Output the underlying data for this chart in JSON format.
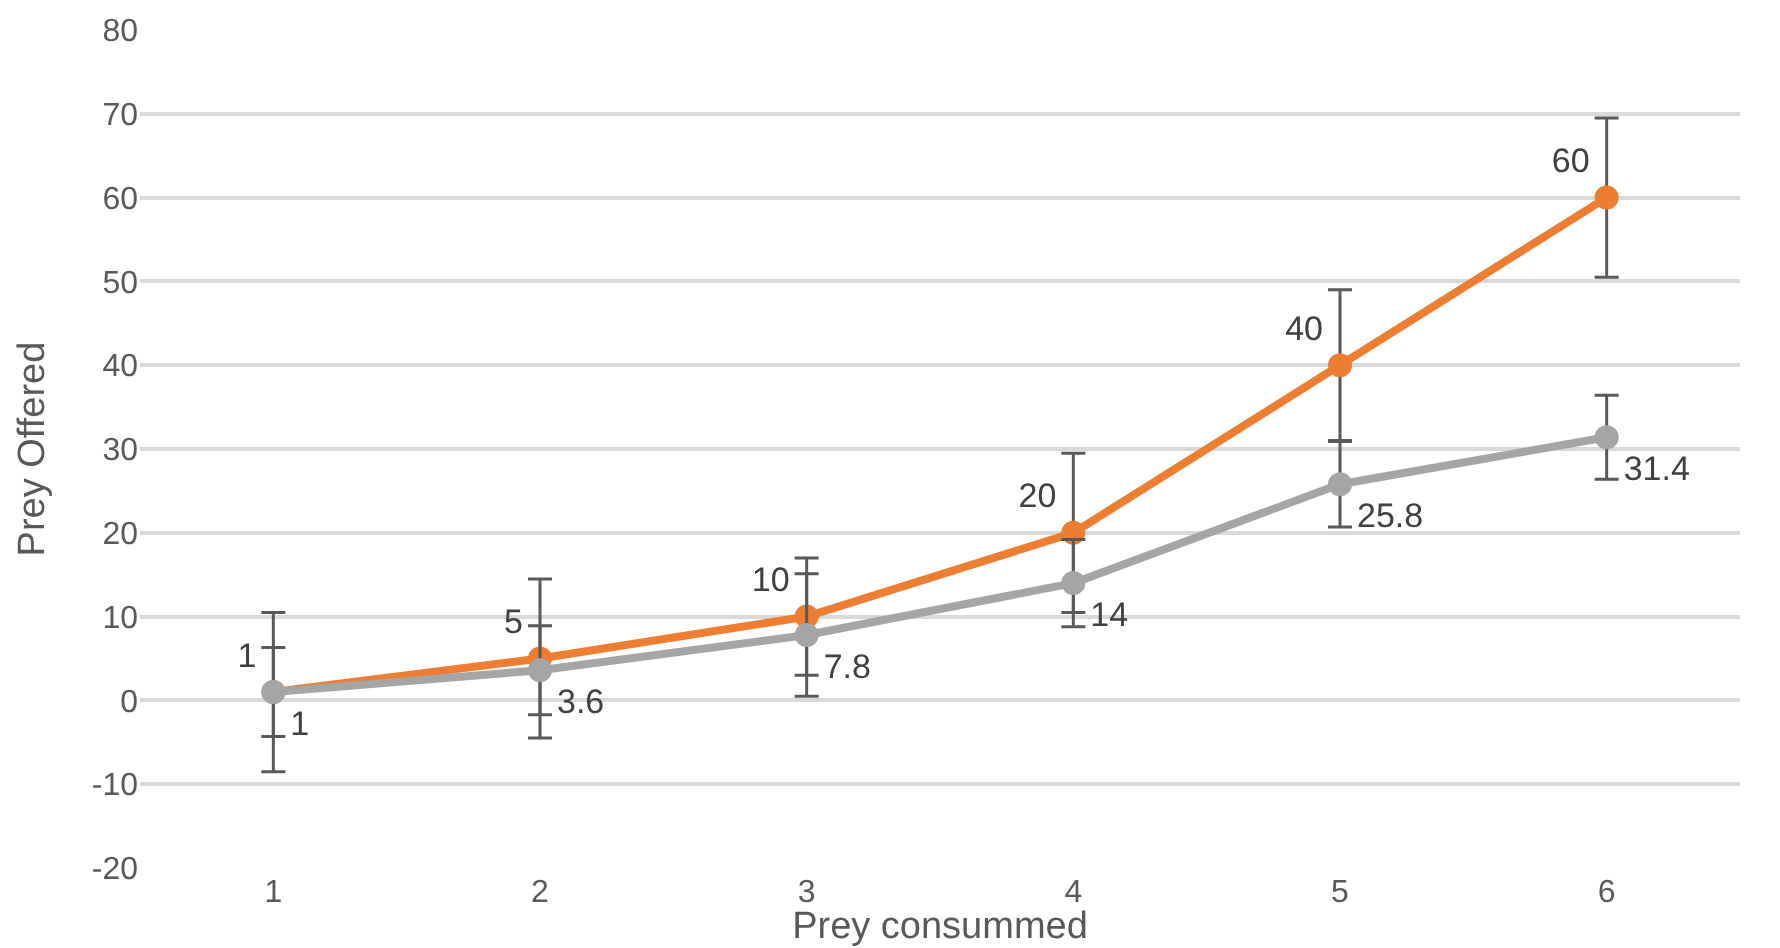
{
  "chart_data": {
    "type": "line",
    "xlabel": "Prey consummed",
    "ylabel": "Prey Offered",
    "categories": [
      "1",
      "2",
      "3",
      "4",
      "5",
      "6"
    ],
    "series": [
      {
        "color": "#ed7d31",
        "values": [
          1,
          5,
          10,
          20,
          40,
          60
        ],
        "errors": [
          9.5,
          9.5,
          7,
          9.5,
          9,
          9.5
        ]
      },
      {
        "color": "#a5a5a5",
        "values": [
          1,
          3.6,
          7.8,
          14,
          25.8,
          31.4
        ],
        "errors": [
          5.3,
          5.3,
          7.3,
          5.2,
          5.1,
          5
        ]
      }
    ],
    "ylim": [
      -20,
      80
    ],
    "yticks": [
      -20,
      -10,
      0,
      10,
      20,
      30,
      40,
      50,
      60,
      70,
      80
    ],
    "grid": "y",
    "marker": "circle",
    "line_style": "solid",
    "data_labels": true
  }
}
